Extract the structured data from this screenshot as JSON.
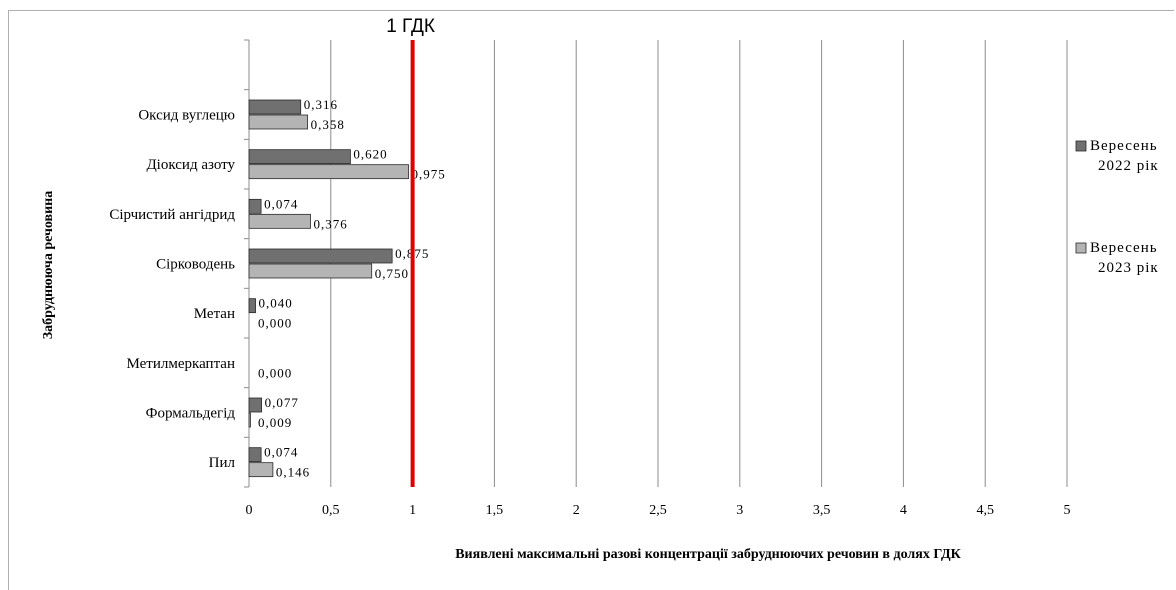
{
  "chart_data": {
    "type": "bar",
    "orientation": "horizontal",
    "categories": [
      "Пил",
      "Формальдегід",
      "Метилмеркаптан",
      "Метан",
      "Сірководень",
      "Сірчистий ангідрид",
      "Діоксид азоту",
      "Оксид вуглецю"
    ],
    "series": [
      {
        "name": "Вересень 2022 рік",
        "legend_lines": [
          "Вересень",
          "2022 рік"
        ],
        "color": "#707070",
        "values": [
          0.074,
          0.077,
          null,
          0.04,
          0.875,
          0.074,
          0.62,
          0.316
        ],
        "labels": [
          "0,074",
          "0,077",
          "",
          "0,040",
          "0,875",
          "0,074",
          "0,620",
          "0,316"
        ]
      },
      {
        "name": "Вересень 2023 рік",
        "legend_lines": [
          "Вересень",
          "2023 рік"
        ],
        "color": "#b4b4b4",
        "values": [
          0.146,
          0.009,
          0.0,
          0.0,
          0.75,
          0.376,
          0.975,
          0.358
        ],
        "labels": [
          "0,146",
          "0,009",
          "0,000",
          "0,000",
          "0,750",
          "0,376",
          "0,975",
          "0,358"
        ]
      }
    ],
    "xlim": [
      0,
      5
    ],
    "xticks": [
      0,
      0.5,
      1,
      1.5,
      2,
      2.5,
      3,
      3.5,
      4,
      4.5,
      5
    ],
    "xtick_labels": [
      "0",
      "0,5",
      "1",
      "1,5",
      "2",
      "2,5",
      "3",
      "3,5",
      "4",
      "4,5",
      "5"
    ],
    "xlabel": "Виявлені максимальні разові концентрації забруднюючих речовин в долях ГДК",
    "ylabel": "Забруднююча речовина",
    "reference_line": {
      "x": 1,
      "label": "1 ГДК",
      "color": "#e00000"
    },
    "grid": "vertical",
    "legend_position": "right"
  }
}
